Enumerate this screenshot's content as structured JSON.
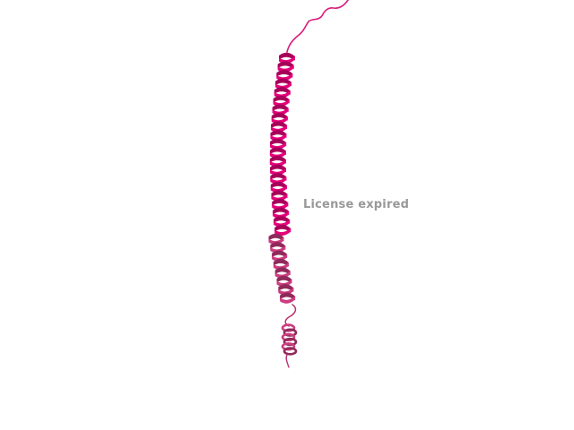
{
  "watermark": {
    "text": "License expired",
    "color": "#999999"
  },
  "molecule": {
    "representation": "cartoon",
    "colors": {
      "helix_main": "#e6007a",
      "helix_dark": "#a8005a",
      "helix_light": "#ff4fa6",
      "helix_lower": "#cc3d80",
      "helix_lower_dark": "#8f2a5a",
      "coil": "#d81b7a",
      "coil_lower": "#b83370"
    }
  }
}
